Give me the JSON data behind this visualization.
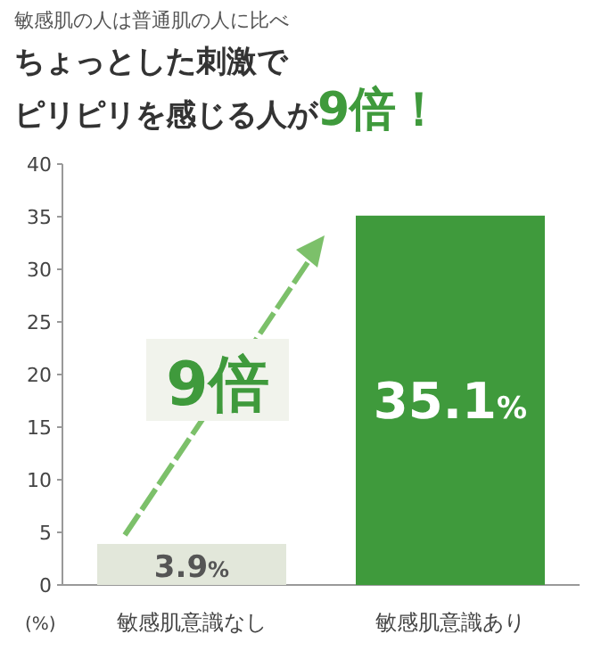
{
  "chart_data": {
    "type": "bar",
    "subtitle": "敏感肌の人は普通肌の人に比べ",
    "title": "ちょっとした刺激でピリピリを感じる人が**9倍！**",
    "ylabel": "(%)",
    "categories": [
      "敏感肌意識なし",
      "敏感肌意識あり"
    ],
    "values": [
      3.9,
      35.1
    ],
    "colors": [
      "#e2e7da",
      "#3f9a3c"
    ],
    "value_labels": [
      "3.9%",
      "35.1%"
    ],
    "ylim": [
      0,
      40
    ],
    "yticks": [
      0,
      5,
      10,
      15,
      20,
      25,
      30,
      35,
      40
    ],
    "grid": false,
    "annotations": [
      "9倍"
    ]
  }
}
